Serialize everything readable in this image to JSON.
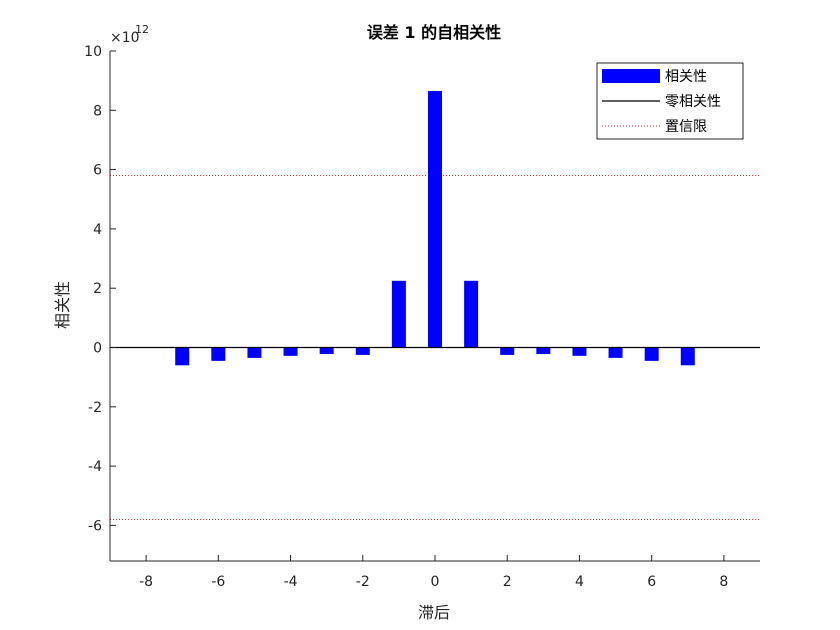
{
  "colors": {
    "bar": "#0000ff",
    "zero_line": "#000000",
    "confidence_line": "#d62728",
    "axis": "#262626",
    "background": "#ffffff"
  },
  "chart_data": {
    "type": "bar",
    "title": "误差 1 的自相关性",
    "xlabel": "滞后",
    "ylabel": "相关性",
    "y_exponent_label": "×10",
    "y_exponent_power": "12",
    "y_scale": 1000000000000.0,
    "xlim": [
      -9,
      9
    ],
    "ylim": [
      -7.2,
      10
    ],
    "x_ticks": [
      -8,
      -6,
      -4,
      -2,
      0,
      2,
      4,
      6,
      8
    ],
    "y_ticks": [
      -6,
      -4,
      -2,
      0,
      2,
      4,
      6,
      8,
      10
    ],
    "lags": [
      -7,
      -6,
      -5,
      -4,
      -3,
      -2,
      -1,
      0,
      1,
      2,
      3,
      4,
      5,
      6,
      7
    ],
    "values": [
      -0.6,
      -0.45,
      -0.35,
      -0.28,
      -0.22,
      -0.25,
      2.25,
      8.65,
      2.25,
      -0.25,
      -0.22,
      -0.28,
      -0.35,
      -0.45,
      -0.6
    ],
    "zero_correlation": 0,
    "confidence_bounds": [
      5.8,
      -5.8
    ],
    "grid": false,
    "legend": {
      "position": "top-right",
      "entries": [
        {
          "label": "相关性",
          "kind": "bar"
        },
        {
          "label": "零相关性",
          "kind": "line"
        },
        {
          "label": "置信限",
          "kind": "dotted"
        }
      ]
    }
  }
}
